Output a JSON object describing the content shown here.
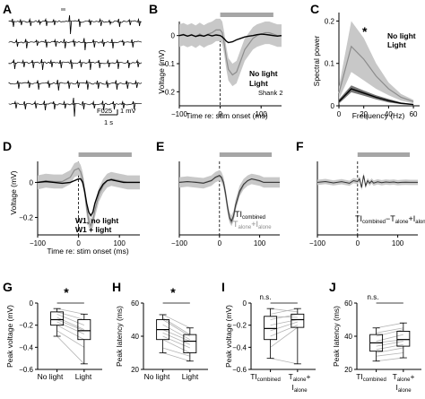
{
  "panels": {
    "A": {
      "label": "A",
      "scale_label": "F025",
      "scale_v": "1 mV",
      "scale_t": "1 s",
      "traces": [
        {
          "spikes": [
            0.02,
            0.08,
            0.15,
            0.22,
            0.27,
            0.33,
            0.45,
            0.52,
            0.6,
            0.68,
            0.75,
            0.82,
            0.9,
            0.97
          ],
          "amps": [
            6,
            4,
            5,
            3,
            5,
            4,
            14,
            6,
            4,
            5,
            3,
            6,
            4,
            5
          ]
        },
        {
          "spikes": [
            0.05,
            0.12,
            0.2,
            0.27,
            0.34,
            0.41,
            0.48,
            0.56,
            0.63,
            0.7,
            0.77,
            0.85,
            0.92
          ],
          "amps": [
            5,
            7,
            4,
            6,
            5,
            7,
            5,
            9,
            6,
            5,
            7,
            4,
            6
          ]
        },
        {
          "spikes": [
            0.03,
            0.1,
            0.17,
            0.24,
            0.31,
            0.38,
            0.46,
            0.53,
            0.6,
            0.67,
            0.74,
            0.81,
            0.89,
            0.96
          ],
          "amps": [
            7,
            5,
            6,
            8,
            5,
            6,
            7,
            5,
            8,
            6,
            5,
            7,
            6,
            5
          ]
        },
        {
          "spikes": [
            0.06,
            0.14,
            0.21,
            0.29,
            0.36,
            0.44,
            0.51,
            0.58,
            0.66,
            0.73,
            0.8,
            0.88,
            0.95
          ],
          "amps": [
            6,
            5,
            7,
            5,
            8,
            6,
            5,
            7,
            6,
            5,
            7,
            6,
            5
          ]
        },
        {
          "spikes": [
            0.04,
            0.11,
            0.19,
            0.26,
            0.33,
            0.41,
            0.48,
            0.55,
            0.63,
            0.7,
            0.78,
            0.85,
            0.93
          ],
          "amps": [
            5,
            6,
            5,
            7,
            6,
            5,
            14,
            6,
            5,
            7,
            6,
            5,
            6
          ]
        }
      ]
    },
    "B": {
      "label": "B",
      "ylabel": "Voltage (mV)",
      "xlabel": "Time re: stim onset (ms)",
      "legend": [
        "No light",
        "Light"
      ],
      "note": "Shank 2"
    },
    "C": {
      "label": "C",
      "ylabel": "Spectral power",
      "xlabel": "Frequency (Hz)",
      "legend": [
        "No light",
        "Light"
      ],
      "sig": "*"
    },
    "D": {
      "label": "D",
      "ylabel": "Voltage (mV)",
      "xlabel": "Time re: stim onset (ms)",
      "legend": [
        "W1, no light",
        "W1 + light"
      ]
    },
    "E": {
      "label": "E",
      "legend_main": "TI",
      "legend_sub": "combined",
      "legend2_a": "T",
      "legend2_a_sub": "alone",
      "legend2_plus": "+I",
      "legend2_b_sub": "alone"
    },
    "F": {
      "label": "F",
      "legend_a": "TI",
      "legend_a_sub": "combined",
      "legend_b": "−T",
      "legend_b_sub": "alone",
      "legend_c": "+I",
      "legend_c_sub": "alone"
    },
    "G": {
      "label": "G",
      "sig": "*",
      "ylabel": "Peak voltage (mV)",
      "xticks": [
        "No light",
        "Light"
      ]
    },
    "H": {
      "label": "H",
      "sig": "*",
      "ylabel": "Peak latency (ms)",
      "xticks": [
        "No light",
        "Light"
      ]
    },
    "I": {
      "label": "I",
      "sig": "n.s.",
      "ylabel": "Peak voltage (mV)",
      "x1": "TI",
      "x1_sub": "combined",
      "x2_a": "T",
      "x2_a_sub": "alone",
      "x2_b": "+",
      "x2_c": "I",
      "x2_c_sub": "alone"
    },
    "J": {
      "label": "J",
      "sig": "n.s.",
      "ylabel": "Peak latency (ms)",
      "x1": "TI",
      "x1_sub": "combined",
      "x2_a": "T",
      "x2_a_sub": "alone",
      "x2_b": "+",
      "x2_c": "I",
      "x2_c_sub": "alone"
    }
  },
  "colors": {
    "dark": "#000000",
    "light": "#8c8c8c",
    "band": "#c8c8c8",
    "bar": "#a6a6a6",
    "pale": "#b5b5b5"
  },
  "chart_data": [
    {
      "panel": "B",
      "type": "line",
      "x": [
        -100,
        -90,
        -80,
        -70,
        -60,
        -50,
        -40,
        -30,
        -20,
        -10,
        0,
        5,
        10,
        15,
        20,
        30,
        40,
        50,
        60,
        70,
        80,
        90,
        100,
        110,
        120,
        130,
        140,
        150
      ],
      "series": [
        {
          "name": "No light",
          "values": [
            0,
            0.003,
            -0.002,
            0.002,
            -0.003,
            0.001,
            -0.002,
            0.003,
            -0.001,
            0.002,
            0,
            -0.005,
            -0.012,
            -0.02,
            -0.025,
            -0.022,
            -0.015,
            -0.01,
            -0.005,
            -0.002,
            0,
            0.003,
            0.005,
            0.004,
            0.002,
            0,
            -0.002,
            0
          ]
        },
        {
          "name": "Light",
          "values": [
            0,
            0.005,
            -0.002,
            0.004,
            -0.004,
            0.006,
            -0.003,
            0.005,
            0.01,
            0.02,
            0.02,
            0.01,
            -0.03,
            -0.08,
            -0.12,
            -0.14,
            -0.13,
            -0.09,
            -0.05,
            -0.03,
            -0.01,
            0,
            0.005,
            0.01,
            0.01,
            0.005,
            0,
            0
          ]
        }
      ],
      "band_light": 0.04,
      "xlim": [
        -100,
        150
      ],
      "ylim": [
        -0.25,
        0.05
      ],
      "xticks": [
        -100,
        0,
        100
      ],
      "yticks": [
        0,
        -0.1,
        -0.2
      ],
      "stim_bar": [
        0,
        130
      ]
    },
    {
      "panel": "C",
      "type": "line",
      "x": [
        0,
        10,
        20,
        30,
        40,
        50,
        60
      ],
      "series": [
        {
          "name": "No light",
          "values": [
            0.01,
            0.04,
            0.03,
            0.02,
            0.012,
            0.006,
            0.003
          ],
          "band": [
            0.005,
            0.008,
            0.006,
            0.005,
            0.004,
            0.002,
            0.001
          ]
        },
        {
          "name": "Light",
          "values": [
            0.03,
            0.14,
            0.11,
            0.07,
            0.04,
            0.02,
            0.01
          ],
          "band": [
            0.015,
            0.06,
            0.05,
            0.03,
            0.015,
            0.008,
            0.004
          ]
        }
      ],
      "xlim": [
        0,
        65
      ],
      "ylim": [
        0,
        0.22
      ],
      "xticks": [
        0,
        20,
        40,
        60
      ],
      "yticks": [
        0,
        0.1,
        0.2
      ]
    },
    {
      "panel": "D",
      "type": "line",
      "x": [
        -100,
        -80,
        -60,
        -40,
        -20,
        -10,
        0,
        5,
        10,
        15,
        20,
        25,
        30,
        35,
        40,
        50,
        60,
        70,
        80,
        90,
        100,
        110,
        120,
        130,
        140,
        150
      ],
      "series": [
        {
          "name": "W1, no light",
          "values": [
            0,
            0.005,
            0,
            -0.005,
            0,
            0.01,
            0.02,
            0.02,
            0,
            -0.05,
            -0.12,
            -0.17,
            -0.19,
            -0.17,
            -0.12,
            -0.05,
            -0.01,
            0.01,
            0.015,
            0.01,
            0.005,
            0,
            0,
            0,
            0,
            0
          ]
        },
        {
          "name": "W1 + light",
          "values": [
            0,
            0.01,
            0.005,
            0.005,
            0.03,
            0.07,
            0.08,
            0.06,
            0.02,
            -0.05,
            -0.15,
            -0.22,
            -0.25,
            -0.22,
            -0.16,
            -0.07,
            -0.02,
            0.01,
            0.02,
            0.015,
            0.01,
            0.005,
            0,
            0,
            0,
            0
          ]
        }
      ],
      "band_light": 0.04,
      "xlim": [
        -100,
        150
      ],
      "ylim": [
        -0.3,
        0.12
      ],
      "xticks": [
        -100,
        0,
        100
      ],
      "yticks": [
        0,
        -0.2
      ],
      "stim_bar": [
        0,
        130
      ]
    },
    {
      "panel": "E",
      "type": "line",
      "x": [
        -100,
        -80,
        -60,
        -40,
        -20,
        -10,
        0,
        5,
        10,
        15,
        20,
        25,
        30,
        35,
        40,
        50,
        60,
        70,
        80,
        90,
        100,
        110,
        120,
        130,
        140,
        150
      ],
      "series": [
        {
          "name": "TI combined",
          "values": [
            0,
            0.005,
            0,
            -0.005,
            0.01,
            0.03,
            0.04,
            0.03,
            0,
            -0.06,
            -0.14,
            -0.2,
            -0.22,
            -0.19,
            -0.13,
            -0.05,
            -0.01,
            0.01,
            0.02,
            0.015,
            0.01,
            0,
            0,
            0,
            0,
            0
          ]
        },
        {
          "name": "T alone + I alone",
          "values": [
            0,
            0.003,
            0.002,
            -0.003,
            0.012,
            0.028,
            0.035,
            0.025,
            -0.005,
            -0.07,
            -0.15,
            -0.21,
            -0.23,
            -0.2,
            -0.14,
            -0.06,
            -0.015,
            0.01,
            0.02,
            0.015,
            0.008,
            0,
            0,
            0,
            0,
            0
          ]
        }
      ],
      "xlim": [
        -100,
        150
      ],
      "ylim": [
        -0.3,
        0.12
      ],
      "xticks": [
        -100,
        0,
        100
      ],
      "stim_bar": [
        0,
        130
      ]
    },
    {
      "panel": "F",
      "type": "line",
      "x": [
        -100,
        -80,
        -60,
        -40,
        -20,
        -10,
        0,
        5,
        10,
        15,
        20,
        25,
        30,
        35,
        40,
        50,
        60,
        70,
        80,
        90,
        100,
        110,
        120,
        130,
        140,
        150
      ],
      "series": [
        {
          "name": "TI combined − T alone + I alone",
          "values": [
            0,
            0.005,
            -0.003,
            0.004,
            -0.005,
            0.01,
            0.005,
            0.02,
            -0.03,
            0.04,
            -0.02,
            0.01,
            -0.005,
            0.008,
            -0.004,
            0.003,
            -0.002,
            0.002,
            0,
            0.002,
            -0.002,
            0,
            0.001,
            0,
            0,
            0
          ]
        }
      ],
      "band": 0.015,
      "xlim": [
        -100,
        150
      ],
      "ylim": [
        -0.3,
        0.12
      ],
      "xticks": [
        -100,
        0,
        100
      ],
      "stim_bar": [
        0,
        130
      ]
    },
    {
      "panel": "G",
      "type": "box",
      "categories": [
        "No light",
        "Light"
      ],
      "boxes": [
        {
          "min": -0.3,
          "q1": -0.2,
          "median": -0.15,
          "q3": -0.08,
          "max": -0.05
        },
        {
          "min": -0.55,
          "q1": -0.33,
          "median": -0.25,
          "q3": -0.15,
          "max": -0.1
        }
      ],
      "pairs": [
        [
          -0.05,
          -0.1
        ],
        [
          -0.08,
          -0.15
        ],
        [
          -0.1,
          -0.2
        ],
        [
          -0.13,
          -0.24
        ],
        [
          -0.15,
          -0.25
        ],
        [
          -0.17,
          -0.28
        ],
        [
          -0.2,
          -0.33
        ],
        [
          -0.25,
          -0.4
        ],
        [
          -0.3,
          -0.55
        ]
      ],
      "ylim": [
        -0.6,
        0
      ],
      "yticks": [
        0,
        -0.2,
        -0.4,
        -0.6
      ]
    },
    {
      "panel": "H",
      "type": "box",
      "categories": [
        "No light",
        "Light"
      ],
      "boxes": [
        {
          "min": 30,
          "q1": 38,
          "median": 44,
          "q3": 50,
          "max": 53
        },
        {
          "min": 25,
          "q1": 30,
          "median": 37,
          "q3": 41,
          "max": 45
        }
      ],
      "pairs": [
        [
          53,
          45
        ],
        [
          51,
          41
        ],
        [
          50,
          40
        ],
        [
          47,
          38
        ],
        [
          44,
          37
        ],
        [
          42,
          35
        ],
        [
          40,
          33
        ],
        [
          38,
          30
        ],
        [
          33,
          28
        ],
        [
          30,
          25
        ]
      ],
      "ylim": [
        20,
        60
      ],
      "yticks": [
        20,
        40,
        60
      ]
    },
    {
      "panel": "I",
      "type": "box",
      "categories": [
        "TI combined",
        "T alone + I alone"
      ],
      "boxes": [
        {
          "min": -0.5,
          "q1": -0.33,
          "median": -0.23,
          "q3": -0.12,
          "max": -0.05
        },
        {
          "min": -0.55,
          "q1": -0.22,
          "median": -0.15,
          "q3": -0.1,
          "max": -0.05
        }
      ],
      "pairs": [
        [
          -0.05,
          -0.08
        ],
        [
          -0.1,
          -0.05
        ],
        [
          -0.12,
          -0.13
        ],
        [
          -0.15,
          -0.1
        ],
        [
          -0.2,
          -0.15
        ],
        [
          -0.25,
          -0.17
        ],
        [
          -0.3,
          -0.2
        ],
        [
          -0.4,
          -0.22
        ],
        [
          -0.5,
          -0.55
        ]
      ],
      "ylim": [
        -0.6,
        0
      ],
      "yticks": [
        0,
        -0.2,
        -0.4,
        -0.6
      ]
    },
    {
      "panel": "J",
      "type": "box",
      "categories": [
        "TI combined",
        "T alone + I alone"
      ],
      "boxes": [
        {
          "min": 25,
          "q1": 31,
          "median": 36,
          "q3": 41,
          "max": 45
        },
        {
          "min": 27,
          "q1": 34,
          "median": 38,
          "q3": 43,
          "max": 48
        }
      ],
      "pairs": [
        [
          45,
          48
        ],
        [
          42,
          45
        ],
        [
          40,
          44
        ],
        [
          37,
          41
        ],
        [
          36,
          38
        ],
        [
          34,
          37
        ],
        [
          32,
          35
        ],
        [
          30,
          33
        ],
        [
          28,
          30
        ],
        [
          25,
          27
        ]
      ],
      "ylim": [
        20,
        60
      ],
      "yticks": [
        20,
        40,
        60
      ]
    }
  ]
}
